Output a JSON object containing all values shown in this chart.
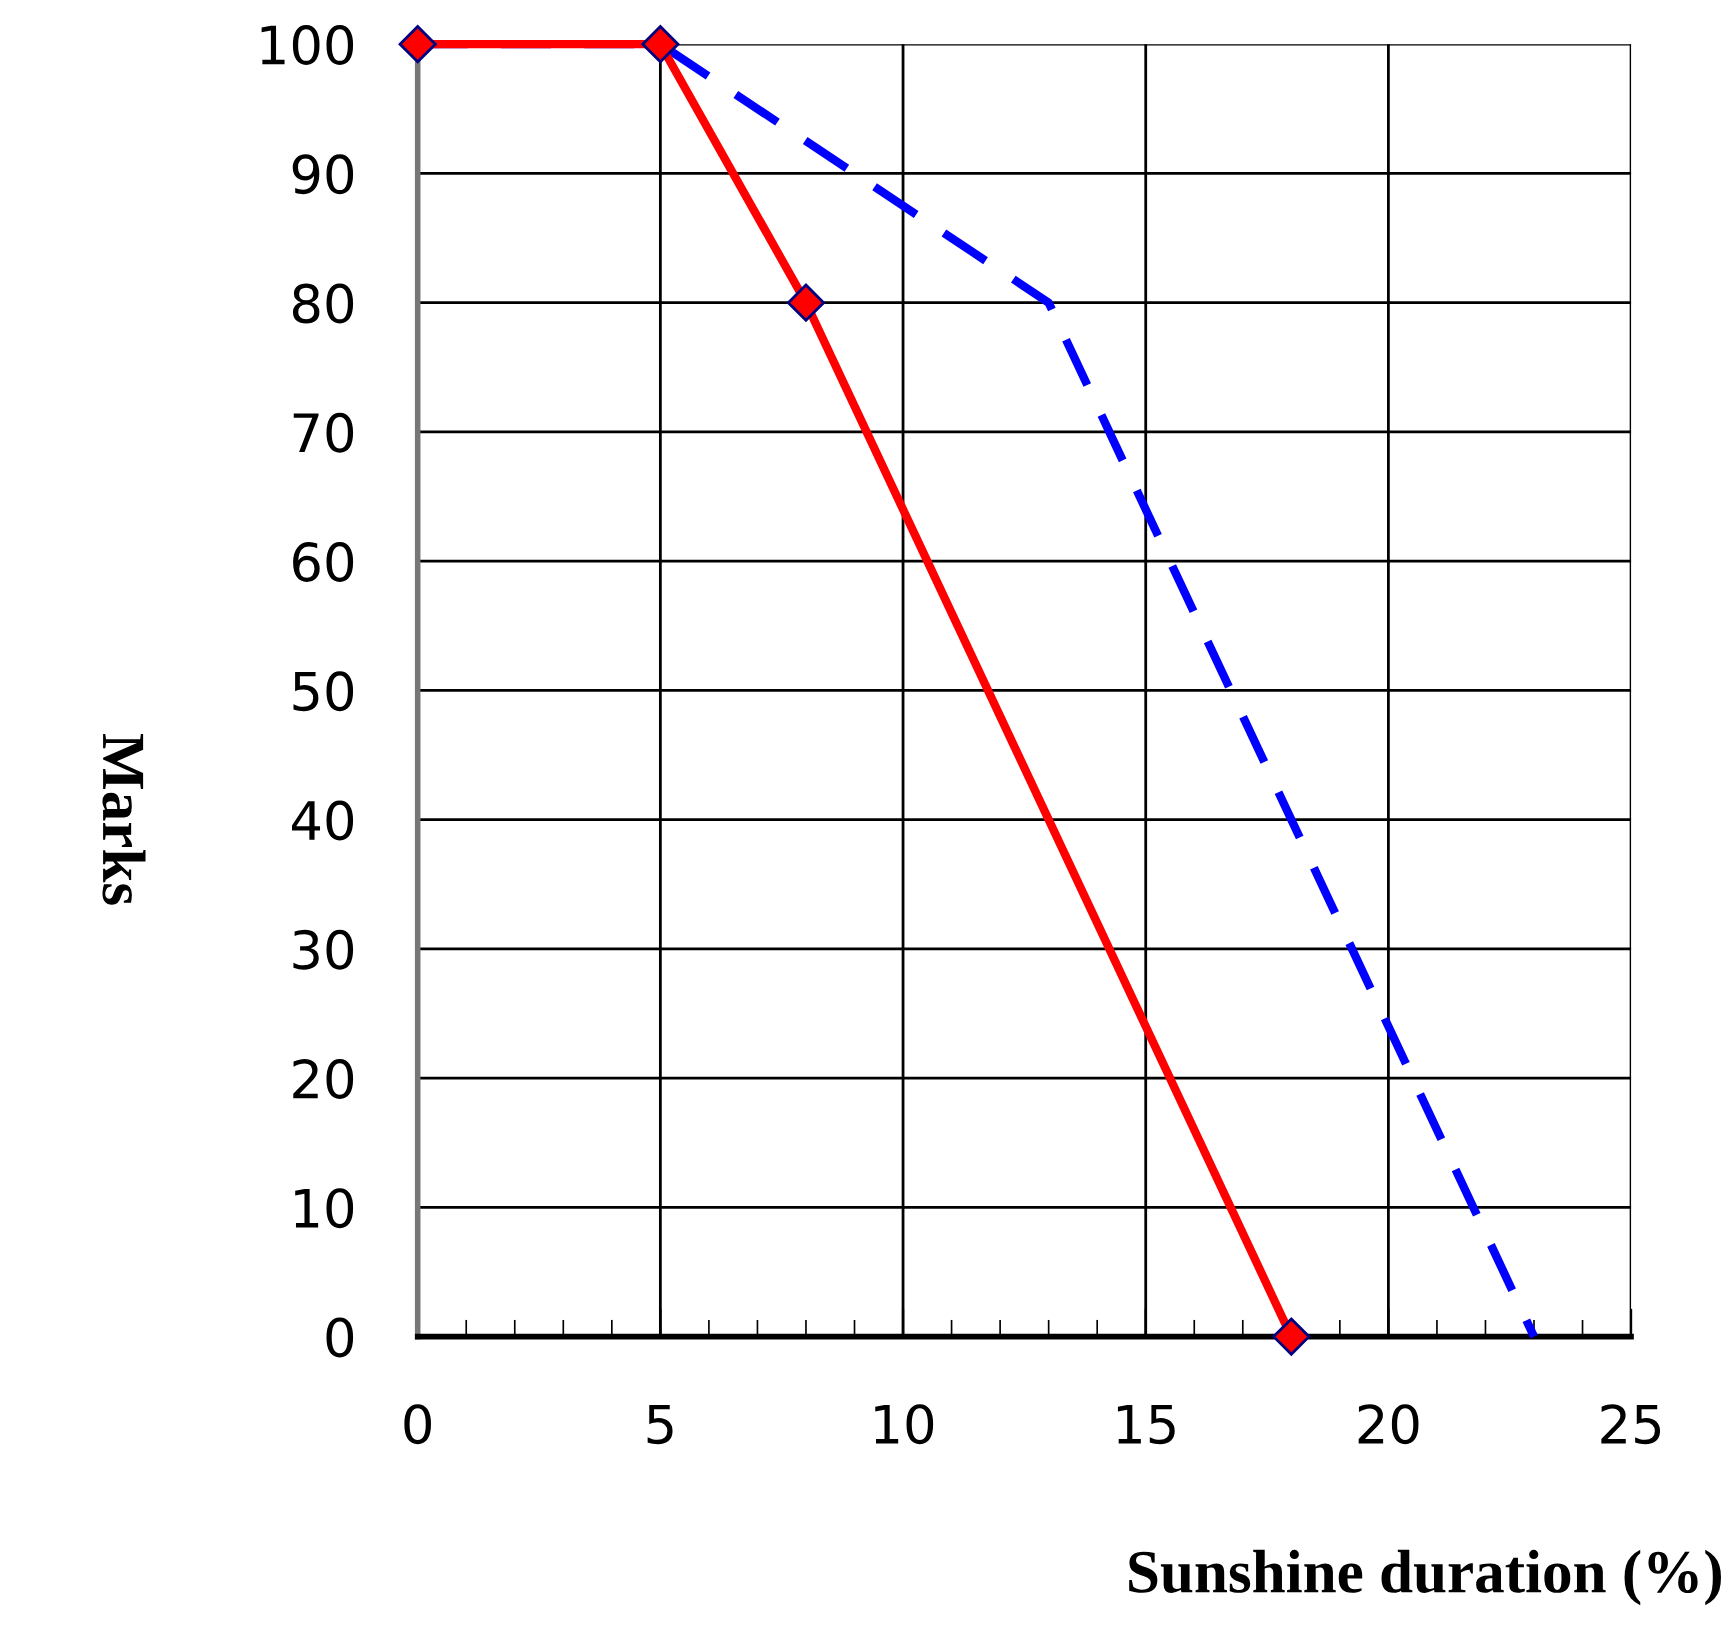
{
  "chart_data": {
    "type": "line",
    "xlabel": "Sunshine duration (%)",
    "ylabel": "Marks",
    "xlim": [
      0,
      25
    ],
    "ylim": [
      0,
      100
    ],
    "xticks": [
      0,
      5,
      10,
      15,
      20,
      25
    ],
    "yticks": [
      0,
      10,
      20,
      30,
      40,
      50,
      60,
      70,
      80,
      90,
      100
    ],
    "grid": true,
    "legend": false,
    "series": [
      {
        "x": [
          0,
          5,
          13,
          23
        ],
        "values": [
          100,
          100,
          80,
          0
        ],
        "color": "#0000ff",
        "line_style": "dashed",
        "marker": "none"
      },
      {
        "x": [
          0,
          5,
          8,
          18
        ],
        "values": [
          100,
          100,
          80,
          0
        ],
        "color": "#ff0000",
        "line_style": "solid",
        "marker": "diamond"
      }
    ]
  }
}
